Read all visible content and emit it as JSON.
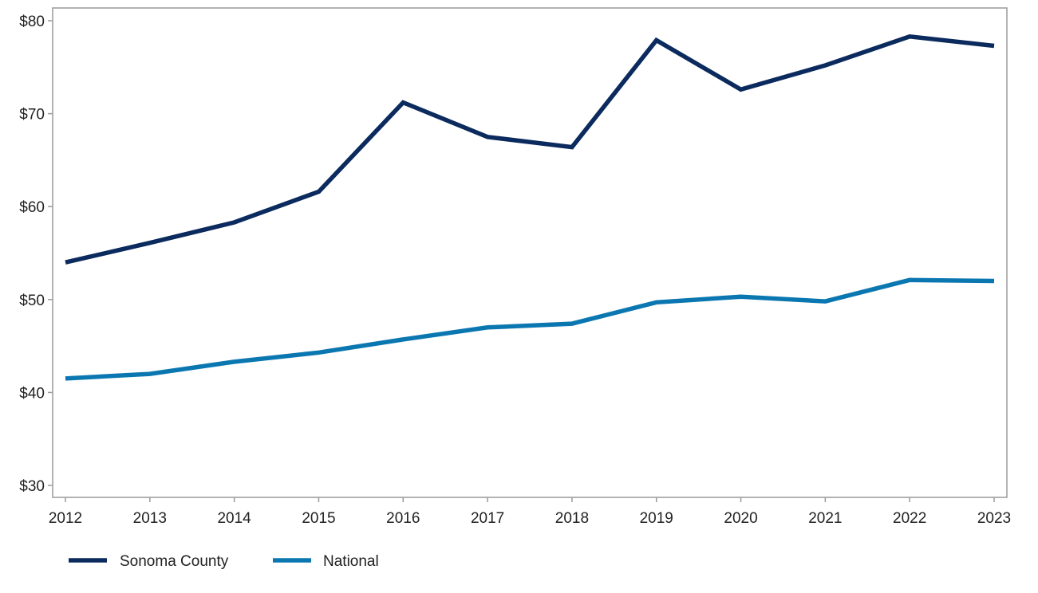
{
  "chart_data": {
    "type": "line",
    "title": "",
    "xlabel": "",
    "ylabel": "",
    "x": [
      "2012",
      "2013",
      "2014",
      "2015",
      "2016",
      "2017",
      "2018",
      "2019",
      "2020",
      "2021",
      "2022",
      "2023"
    ],
    "ylim": [
      30,
      80
    ],
    "yticks": [
      30,
      40,
      50,
      60,
      70,
      80
    ],
    "ytick_labels": [
      "$30",
      "$40",
      "$50",
      "$60",
      "$70",
      "$80"
    ],
    "grid": false,
    "legend_position": "bottom-left",
    "series": [
      {
        "name": "Sonoma County",
        "color": "#0b2a5e",
        "values": [
          54.0,
          56.1,
          58.3,
          61.6,
          71.2,
          67.5,
          66.4,
          77.9,
          72.6,
          75.2,
          78.3,
          77.3
        ]
      },
      {
        "name": "National",
        "color": "#0b77b1",
        "values": [
          41.5,
          42.0,
          43.3,
          44.3,
          45.7,
          47.0,
          47.4,
          49.7,
          50.3,
          49.8,
          52.1,
          52.0
        ]
      }
    ]
  }
}
